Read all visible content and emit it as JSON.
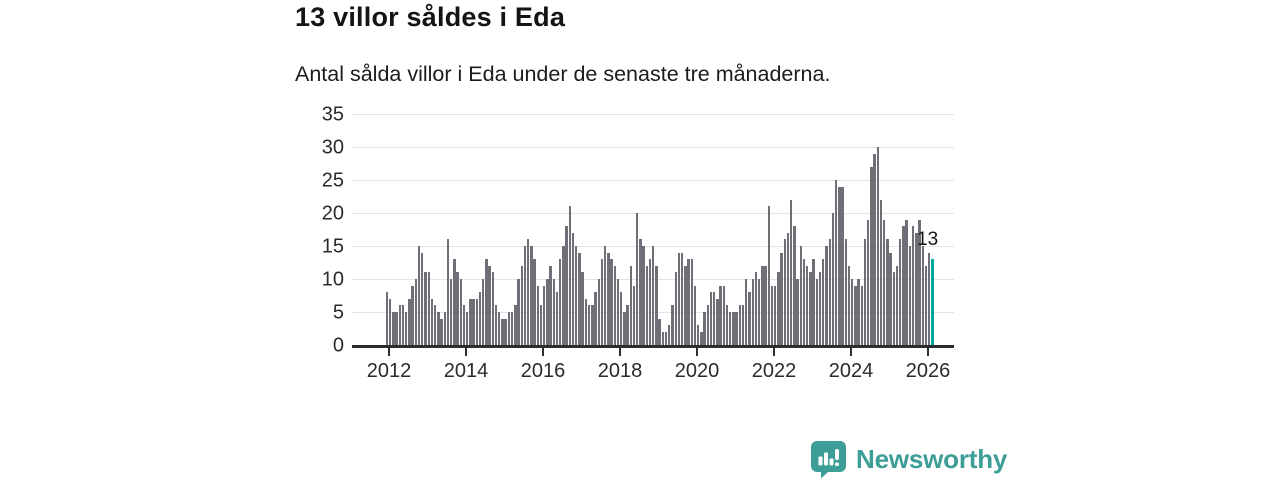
{
  "header": {
    "title": "13 villor såldes i Eda",
    "subtitle": "Antal sålda villor i Eda under de senaste tre månaderna."
  },
  "chart_data": {
    "type": "bar",
    "title": "Antal sålda villor i Eda under de senaste tre månaderna.",
    "xlabel": "",
    "ylabel": "",
    "ylim": [
      0,
      35
    ],
    "y_ticks": [
      0,
      5,
      10,
      15,
      20,
      25,
      30,
      35
    ],
    "x_tick_labels": [
      "2012",
      "2014",
      "2016",
      "2018",
      "2020",
      "2022",
      "2024",
      "2026"
    ],
    "x_period": "monthly",
    "x_start": "2011-12",
    "x_end": "2026-02",
    "grid": true,
    "legend": "none",
    "bar_color": "#6f6f78",
    "values": [
      8,
      7,
      5,
      5,
      6,
      6,
      5,
      7,
      9,
      10,
      15,
      14,
      11,
      11,
      7,
      6,
      5,
      4,
      5,
      16,
      10,
      13,
      11,
      10,
      6,
      5,
      7,
      7,
      7,
      8,
      10,
      13,
      12,
      11,
      6,
      5,
      4,
      4,
      5,
      5,
      6,
      10,
      12,
      15,
      16,
      15,
      13,
      9,
      6,
      9,
      10,
      12,
      10,
      8,
      13,
      15,
      18,
      21,
      17,
      15,
      14,
      11,
      7,
      6,
      6,
      8,
      10,
      13,
      15,
      14,
      13,
      12,
      10,
      8,
      5,
      6,
      12,
      9,
      20,
      16,
      15,
      12,
      13,
      15,
      12,
      4,
      2,
      2,
      3,
      6,
      11,
      14,
      14,
      12,
      13,
      13,
      9,
      3,
      2,
      5,
      6,
      8,
      8,
      7,
      9,
      9,
      6,
      5,
      5,
      5,
      6,
      6,
      10,
      8,
      10,
      11,
      10,
      12,
      12,
      21,
      9,
      9,
      11,
      14,
      16,
      17,
      22,
      18,
      10,
      15,
      13,
      12,
      11,
      13,
      10,
      11,
      13,
      15,
      16,
      20,
      25,
      24,
      24,
      16,
      12,
      10,
      9,
      10,
      9,
      16,
      19,
      27,
      29,
      30,
      22,
      19,
      16,
      14,
      11,
      12,
      16,
      18,
      19,
      15,
      18,
      17,
      19,
      15,
      12,
      14,
      13
    ],
    "highlight": {
      "index": 170,
      "value": 13,
      "label": "13",
      "color": "#00a79f"
    }
  },
  "footer": {
    "brand": "Newsworthy",
    "logo_icon": "newsworthy-chart-bubble-icon",
    "brand_color": "#3d9e97"
  }
}
